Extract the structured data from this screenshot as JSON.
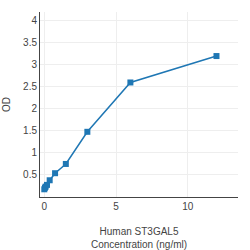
{
  "chart_data": {
    "type": "line",
    "x": [
      0,
      0.0469,
      0.0938,
      0.1875,
      0.375,
      0.75,
      1.5,
      3,
      6,
      12
    ],
    "values": [
      0.175,
      0.21,
      0.235,
      0.275,
      0.38,
      0.54,
      0.75,
      1.48,
      2.6,
      3.2
    ],
    "xlabel": "Human ST3GAL5\nConcentration (ng/ml)",
    "ylabel": "OD",
    "xlim": [
      -0.3,
      13.5
    ],
    "ylim": [
      0,
      4.2
    ],
    "xticks": [
      0,
      5,
      10
    ],
    "yticks": [
      0.5,
      1,
      1.5,
      2,
      2.5,
      3,
      3.5,
      4
    ],
    "marker": "square",
    "grid": true
  }
}
